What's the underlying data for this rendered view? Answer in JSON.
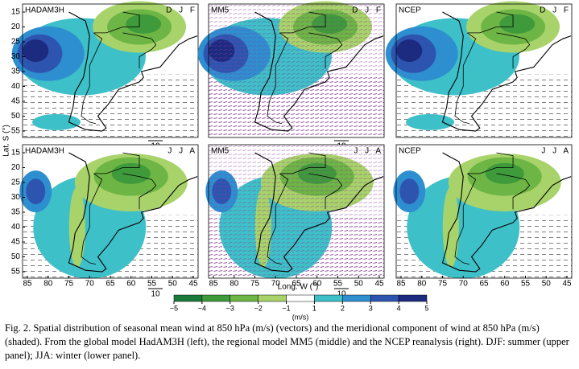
{
  "panels": [
    {
      "model": "HADAM3H",
      "season": "D J F"
    },
    {
      "model": "MM5",
      "season": "D J F"
    },
    {
      "model": "NCEP",
      "season": "D J F"
    },
    {
      "model": "HADAM3H",
      "season": "J J A"
    },
    {
      "model": "MM5",
      "season": "J J A"
    },
    {
      "model": "NCEP",
      "season": "J J A"
    }
  ],
  "axes": {
    "y_label": "Lat. S (°)",
    "x_label": "Long. W (°)",
    "yticks": [
      15,
      20,
      25,
      30,
      35,
      40,
      45,
      50,
      55
    ],
    "xticks": [
      85,
      80,
      75,
      70,
      65,
      60,
      55,
      50,
      45
    ],
    "reference_vector": "10"
  },
  "colorbar": {
    "ticks": [
      {
        "value": -5,
        "label": "−5"
      },
      {
        "value": -4,
        "label": "−4"
      },
      {
        "value": -3,
        "label": "−3"
      },
      {
        "value": -2,
        "label": "−2"
      },
      {
        "value": -1,
        "label": "−1"
      },
      1,
      2,
      3,
      4,
      5
    ],
    "colors": [
      "#1a7a3a",
      "#3e9a3a",
      "#6db544",
      "#a8d36a",
      "#ffffff",
      "#3ec0c8",
      "#2e8fd0",
      "#2d55b0",
      "#1c2a80"
    ],
    "unit": "(m/s)"
  },
  "caption": "Fig. 2. Spatial distribution of seasonal mean wind at 850 hPa (m/s) (vectors) and the meridional component of wind at 850 hPa (m/s) (shaded). From the global model HadAM3H (left), the regional model MM5 (middle) and the NCEP reanalysis (right). DJF: summer (upper panel); JJA: winter (lower panel)."
}
